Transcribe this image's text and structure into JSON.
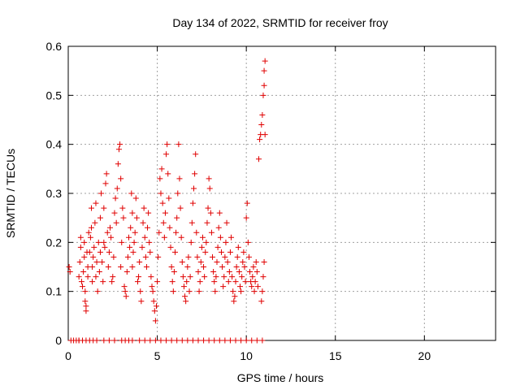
{
  "chart_data": {
    "type": "scatter",
    "title": "Day 134 of 2022, SRMTID for receiver froy",
    "xlabel": "GPS time / hours",
    "ylabel": "SRMTID / TECUs",
    "xlim": [
      0,
      24
    ],
    "ylim": [
      0,
      0.6
    ],
    "xticks": [
      0,
      5,
      10,
      15,
      20
    ],
    "yticks": [
      0,
      0.1,
      0.2,
      0.3,
      0.4,
      0.5,
      0.6
    ],
    "grid": true,
    "marker": "+",
    "color": "#e00000",
    "series": [
      {
        "name": "SRMTID",
        "points": [
          [
            0.05,
            0.15
          ],
          [
            0.1,
            0.14
          ],
          [
            0.15,
            0.0
          ],
          [
            0.3,
            0.0
          ],
          [
            0.45,
            0.0
          ],
          [
            0.6,
            0.0
          ],
          [
            0.6,
            0.13
          ],
          [
            0.65,
            0.16
          ],
          [
            0.7,
            0.19
          ],
          [
            0.7,
            0.21
          ],
          [
            0.75,
            0.12
          ],
          [
            0.8,
            0.11
          ],
          [
            0.85,
            0.14
          ],
          [
            0.9,
            0.17
          ],
          [
            0.9,
            0.2
          ],
          [
            0.95,
            0.1
          ],
          [
            0.95,
            0.08
          ],
          [
            1.0,
            0.06
          ],
          [
            1.0,
            0.07
          ],
          [
            1.05,
            0.18
          ],
          [
            1.1,
            0.15
          ],
          [
            1.1,
            0.13
          ],
          [
            1.15,
            0.22
          ],
          [
            1.2,
            0.18
          ],
          [
            1.25,
            0.21
          ],
          [
            1.3,
            0.23
          ],
          [
            1.3,
            0.27
          ],
          [
            1.35,
            0.12
          ],
          [
            1.35,
            0.15
          ],
          [
            1.4,
            0.17
          ],
          [
            1.45,
            0.19
          ],
          [
            1.5,
            0.24
          ],
          [
            1.55,
            0.28
          ],
          [
            1.55,
            0.13
          ],
          [
            1.6,
            0.16
          ],
          [
            1.65,
            0.1
          ],
          [
            1.7,
            0.2
          ],
          [
            1.75,
            0.14
          ],
          [
            1.8,
            0.18
          ],
          [
            1.8,
            0.25
          ],
          [
            1.85,
            0.3
          ],
          [
            1.9,
            0.16
          ],
          [
            1.95,
            0.12
          ],
          [
            2.0,
            0.2
          ],
          [
            2.0,
            0.27
          ],
          [
            2.05,
            0.19
          ],
          [
            2.1,
            0.32
          ],
          [
            2.15,
            0.34
          ],
          [
            2.2,
            0.22
          ],
          [
            2.25,
            0.15
          ],
          [
            2.3,
            0.18
          ],
          [
            2.35,
            0.23
          ],
          [
            2.4,
            0.21
          ],
          [
            2.45,
            0.12
          ],
          [
            2.5,
            0.13
          ],
          [
            2.55,
            0.17
          ],
          [
            2.6,
            0.26
          ],
          [
            2.65,
            0.29
          ],
          [
            2.7,
            0.24
          ],
          [
            2.75,
            0.31
          ],
          [
            2.8,
            0.36
          ],
          [
            2.85,
            0.39
          ],
          [
            2.9,
            0.4
          ],
          [
            2.95,
            0.33
          ],
          [
            2.95,
            0.15
          ],
          [
            3.0,
            0.2
          ],
          [
            3.05,
            0.27
          ],
          [
            3.1,
            0.25
          ],
          [
            3.15,
            0.11
          ],
          [
            3.2,
            0.1
          ],
          [
            3.25,
            0.09
          ],
          [
            3.3,
            0.14
          ],
          [
            3.35,
            0.17
          ],
          [
            3.4,
            0.21
          ],
          [
            3.45,
            0.19
          ],
          [
            3.5,
            0.23
          ],
          [
            3.55,
            0.3
          ],
          [
            3.6,
            0.26
          ],
          [
            3.6,
            0.15
          ],
          [
            3.65,
            0.18
          ],
          [
            3.7,
            0.2
          ],
          [
            3.75,
            0.22
          ],
          [
            3.8,
            0.29
          ],
          [
            3.85,
            0.25
          ],
          [
            3.9,
            0.12
          ],
          [
            3.95,
            0.13
          ],
          [
            4.0,
            0.16
          ],
          [
            4.05,
            0.1
          ],
          [
            4.1,
            0.08
          ],
          [
            4.15,
            0.19
          ],
          [
            4.2,
            0.24
          ],
          [
            4.25,
            0.27
          ],
          [
            4.3,
            0.21
          ],
          [
            4.35,
            0.17
          ],
          [
            4.4,
            0.15
          ],
          [
            4.45,
            0.23
          ],
          [
            4.5,
            0.26
          ],
          [
            4.55,
            0.2
          ],
          [
            4.6,
            0.18
          ],
          [
            4.65,
            0.13
          ],
          [
            4.7,
            0.11
          ],
          [
            4.75,
            0.1
          ],
          [
            4.8,
            0.08
          ],
          [
            4.85,
            0.06
          ],
          [
            4.9,
            0.04
          ],
          [
            4.95,
            0.07
          ],
          [
            5.0,
            0.12
          ],
          [
            5.05,
            0.17
          ],
          [
            5.1,
            0.22
          ],
          [
            5.15,
            0.33
          ],
          [
            5.2,
            0.3
          ],
          [
            5.25,
            0.35
          ],
          [
            5.3,
            0.28
          ],
          [
            5.35,
            0.24
          ],
          [
            5.4,
            0.21
          ],
          [
            5.45,
            0.26
          ],
          [
            5.5,
            0.38
          ],
          [
            5.55,
            0.4
          ],
          [
            5.6,
            0.34
          ],
          [
            5.65,
            0.29
          ],
          [
            5.7,
            0.23
          ],
          [
            5.75,
            0.19
          ],
          [
            5.8,
            0.15
          ],
          [
            5.85,
            0.12
          ],
          [
            5.9,
            0.1
          ],
          [
            5.95,
            0.14
          ],
          [
            6.0,
            0.18
          ],
          [
            6.05,
            0.22
          ],
          [
            6.1,
            0.25
          ],
          [
            6.15,
            0.3
          ],
          [
            6.2,
            0.4
          ],
          [
            6.25,
            0.33
          ],
          [
            6.3,
            0.27
          ],
          [
            6.35,
            0.21
          ],
          [
            6.4,
            0.16
          ],
          [
            6.45,
            0.13
          ],
          [
            6.5,
            0.11
          ],
          [
            6.55,
            0.09
          ],
          [
            6.6,
            0.08
          ],
          [
            6.65,
            0.12
          ],
          [
            6.7,
            0.15
          ],
          [
            6.75,
            0.17
          ],
          [
            6.8,
            0.1
          ],
          [
            6.85,
            0.13
          ],
          [
            6.9,
            0.2
          ],
          [
            6.95,
            0.24
          ],
          [
            7.0,
            0.28
          ],
          [
            7.05,
            0.31
          ],
          [
            7.1,
            0.34
          ],
          [
            7.15,
            0.38
          ],
          [
            7.2,
            0.22
          ],
          [
            7.25,
            0.17
          ],
          [
            7.3,
            0.14
          ],
          [
            7.35,
            0.1
          ],
          [
            7.4,
            0.12
          ],
          [
            7.45,
            0.16
          ],
          [
            7.5,
            0.19
          ],
          [
            7.55,
            0.21
          ],
          [
            7.6,
            0.15
          ],
          [
            7.65,
            0.13
          ],
          [
            7.7,
            0.18
          ],
          [
            7.75,
            0.2
          ],
          [
            7.8,
            0.24
          ],
          [
            7.85,
            0.27
          ],
          [
            7.9,
            0.33
          ],
          [
            7.95,
            0.31
          ],
          [
            8.0,
            0.26
          ],
          [
            8.05,
            0.22
          ],
          [
            8.1,
            0.17
          ],
          [
            8.15,
            0.14
          ],
          [
            8.2,
            0.12
          ],
          [
            8.25,
            0.1
          ],
          [
            8.3,
            0.13
          ],
          [
            8.35,
            0.16
          ],
          [
            8.4,
            0.19
          ],
          [
            8.45,
            0.23
          ],
          [
            8.5,
            0.26
          ],
          [
            8.55,
            0.21
          ],
          [
            8.6,
            0.18
          ],
          [
            8.65,
            0.15
          ],
          [
            8.7,
            0.11
          ],
          [
            8.75,
            0.13
          ],
          [
            8.8,
            0.17
          ],
          [
            8.85,
            0.2
          ],
          [
            8.9,
            0.24
          ],
          [
            8.95,
            0.16
          ],
          [
            9.0,
            0.12
          ],
          [
            9.05,
            0.14
          ],
          [
            9.1,
            0.18
          ],
          [
            9.15,
            0.21
          ],
          [
            9.2,
            0.13
          ],
          [
            9.25,
            0.1
          ],
          [
            9.3,
            0.08
          ],
          [
            9.35,
            0.09
          ],
          [
            9.4,
            0.12
          ],
          [
            9.45,
            0.15
          ],
          [
            9.5,
            0.17
          ],
          [
            9.55,
            0.19
          ],
          [
            9.6,
            0.14
          ],
          [
            9.65,
            0.11
          ],
          [
            9.7,
            0.1
          ],
          [
            9.75,
            0.13
          ],
          [
            9.8,
            0.16
          ],
          [
            9.85,
            0.18
          ],
          [
            9.9,
            0.15
          ],
          [
            9.95,
            0.12
          ],
          [
            10.0,
            0.25
          ],
          [
            10.05,
            0.28
          ],
          [
            10.1,
            0.2
          ],
          [
            10.15,
            0.17
          ],
          [
            10.2,
            0.14
          ],
          [
            10.25,
            0.12
          ],
          [
            10.3,
            0.11
          ],
          [
            10.35,
            0.13
          ],
          [
            10.4,
            0.15
          ],
          [
            10.45,
            0.1
          ],
          [
            10.5,
            0.12
          ],
          [
            10.55,
            0.16
          ],
          [
            10.6,
            0.14
          ],
          [
            10.65,
            0.11
          ],
          [
            10.7,
            0.37
          ],
          [
            10.75,
            0.41
          ],
          [
            10.8,
            0.42
          ],
          [
            10.85,
            0.44
          ],
          [
            10.9,
            0.46
          ],
          [
            10.95,
            0.5
          ],
          [
            11.0,
            0.52
          ],
          [
            11.0,
            0.55
          ],
          [
            11.05,
            0.57
          ],
          [
            11.05,
            0.42
          ],
          [
            11.0,
            0.16
          ],
          [
            10.95,
            0.13
          ],
          [
            10.9,
            0.1
          ],
          [
            10.85,
            0.08
          ]
        ],
        "zeros_x": [
          0.6,
          0.8,
          1.0,
          1.2,
          1.4,
          1.6,
          2.0,
          2.3,
          2.6,
          3.0,
          3.2,
          3.4,
          3.6,
          4.0,
          4.3,
          4.6,
          4.9,
          5.2,
          5.5,
          5.8,
          6.1,
          6.4,
          6.7,
          7.0,
          7.3,
          7.6,
          7.9,
          8.2,
          8.5,
          8.8,
          9.1,
          9.4,
          9.7,
          10.0,
          10.3,
          10.6,
          10.9
        ]
      }
    ]
  }
}
